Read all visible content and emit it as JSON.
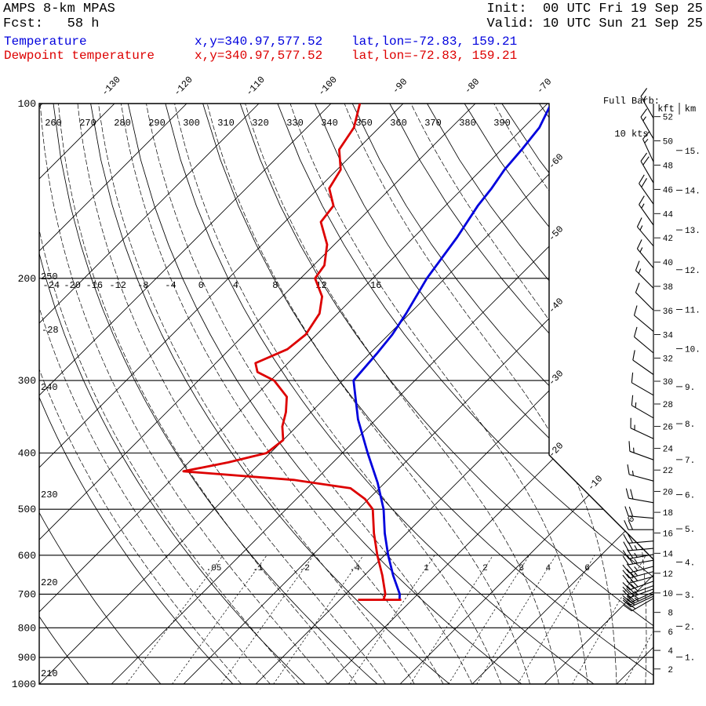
{
  "header": {
    "model": "AMPS 8-km MPAS",
    "fcst": "Fcst:   58 h",
    "init": "Init:  00 UTC Fri 19 Sep 25",
    "valid": "Valid: 10 UTC Sun 21 Sep 25"
  },
  "legend": {
    "temp_label": "Temperature",
    "temp_xy": "x,y=340.97,577.52",
    "temp_latlon": "lat,lon=-72.83, 159.21",
    "dewp_label": "Dewpoint temperature",
    "dewp_xy": "x,y=340.97,577.52",
    "dewp_latlon": "lat,lon=-72.83, 159.21",
    "temp_color": "#0000dd",
    "dewp_color": "#dd0000"
  },
  "barb_legend": {
    "line1": "Full Barb:",
    "line2": "10 kts"
  },
  "axis": {
    "pressure_labels": [
      "100",
      "200",
      "300",
      "400",
      "500",
      "600",
      "700",
      "800",
      "900",
      "1000"
    ],
    "pressure_values": [
      100,
      200,
      300,
      400,
      500,
      600,
      700,
      800,
      900,
      1000
    ],
    "isotherm_top_labels": [
      "-130",
      "-120",
      "-110",
      "-100",
      "-90",
      "-80",
      "-70"
    ],
    "isotherm_top_values": [
      -130,
      -120,
      -110,
      -100,
      -90,
      -80,
      -70
    ],
    "isotherm_right_labels": [
      "-60",
      "-50",
      "-40",
      "-30",
      "-20",
      "-10",
      "0"
    ],
    "isotherm_right_values": [
      -60,
      -50,
      -40,
      -30,
      -20,
      -10,
      0
    ],
    "theta_top_labels": [
      "260",
      "270",
      "280",
      "290",
      "300",
      "310",
      "320",
      "330",
      "340",
      "350",
      "360",
      "370",
      "380",
      "390"
    ],
    "theta_left_labels": [
      "250",
      "240",
      "230",
      "220",
      "210"
    ],
    "moist_labels": [
      "-28",
      "-24",
      "-20",
      "-16",
      "-12",
      "-8",
      "-4",
      "0",
      "4",
      "8",
      "12",
      "16"
    ],
    "moist_values": [
      -28,
      -24,
      -20,
      -16,
      -12,
      -8,
      -4,
      0,
      4,
      8,
      12,
      16
    ],
    "mixing_labels": [
      ".05",
      ".1",
      ".2",
      ".4",
      "1",
      "2",
      "3",
      "4",
      "6"
    ],
    "mixing_values": [
      0.05,
      0.1,
      0.2,
      0.4,
      1,
      2,
      3,
      4,
      6
    ],
    "mixing_unlabeled": [
      10,
      16
    ],
    "kft_header": "kft",
    "km_header": "km",
    "kft_values": [
      2,
      4,
      6,
      8,
      10,
      12,
      14,
      16,
      18,
      20,
      22,
      24,
      26,
      28,
      30,
      32,
      34,
      36,
      38,
      40,
      42,
      44,
      46,
      48,
      50,
      52
    ],
    "kft_labels": [
      "2",
      "4",
      "6",
      "8",
      "10",
      "12",
      "14",
      "16",
      "18",
      "20",
      "22",
      "24",
      "26",
      "28",
      "30",
      "32",
      "34",
      "36",
      "38",
      "40",
      "42",
      "44",
      "46",
      "48",
      "50",
      "52"
    ],
    "km_values": [
      1,
      2,
      3,
      4,
      5,
      6,
      7,
      8,
      9,
      10,
      11,
      12,
      13,
      14,
      15
    ],
    "km_labels": [
      "1.",
      "2.",
      "3.",
      "4.",
      "5.",
      "6.",
      "7.",
      "8.",
      "9.",
      "10.",
      "11.",
      "12.",
      "13.",
      "14.",
      "15."
    ]
  },
  "chart_data": {
    "type": "skewt",
    "pressure_unit": "hPa",
    "temperature_unit": "C",
    "temperature_profile": {
      "label": "Temperature",
      "color": "#0000dd",
      "points": [
        [
          715,
          -21.8
        ],
        [
          700,
          -22.5
        ],
        [
          650,
          -26.0
        ],
        [
          600,
          -29.5
        ],
        [
          550,
          -33.0
        ],
        [
          500,
          -36.5
        ],
        [
          450,
          -41.0
        ],
        [
          400,
          -46.5
        ],
        [
          350,
          -52.5
        ],
        [
          300,
          -58.5
        ],
        [
          270,
          -59.0
        ],
        [
          250,
          -59.5
        ],
        [
          230,
          -60.5
        ],
        [
          200,
          -62.5
        ],
        [
          170,
          -64.0
        ],
        [
          150,
          -65.5
        ],
        [
          140,
          -66.0
        ],
        [
          130,
          -66.8
        ],
        [
          120,
          -67.2
        ],
        [
          110,
          -67.8
        ],
        [
          100,
          -69.5
        ]
      ]
    },
    "dewpoint_profile": {
      "label": "Dewpoint temperature",
      "color": "#dd0000",
      "points": [
        [
          715,
          -24.0
        ],
        [
          700,
          -24.5
        ],
        [
          650,
          -27.5
        ],
        [
          600,
          -31.0
        ],
        [
          550,
          -34.5
        ],
        [
          500,
          -38.0
        ],
        [
          480,
          -40.5
        ],
        [
          460,
          -44.0
        ],
        [
          445,
          -53.0
        ],
        [
          430,
          -69.5
        ],
        [
          415,
          -64.5
        ],
        [
          400,
          -60.5
        ],
        [
          380,
          -60.0
        ],
        [
          360,
          -62.0
        ],
        [
          340,
          -63.5
        ],
        [
          320,
          -65.5
        ],
        [
          300,
          -69.5
        ],
        [
          290,
          -73.0
        ],
        [
          280,
          -74.5
        ],
        [
          265,
          -72.0
        ],
        [
          250,
          -71.5
        ],
        [
          230,
          -72.5
        ],
        [
          215,
          -74.5
        ],
        [
          200,
          -78.0
        ],
        [
          190,
          -78.5
        ],
        [
          175,
          -81.0
        ],
        [
          160,
          -85.0
        ],
        [
          150,
          -85.5
        ],
        [
          140,
          -88.5
        ],
        [
          130,
          -89.5
        ],
        [
          120,
          -92.5
        ],
        [
          110,
          -93.5
        ],
        [
          100,
          -96.0
        ]
      ]
    },
    "surface_bar": {
      "pressure": 716,
      "t_from": -27.5,
      "t_to": -21.5
    },
    "wind_barbs": {
      "full_barb_kts": 10,
      "levels": [
        [
          106,
          15,
          330
        ],
        [
          115,
          15,
          330
        ],
        [
          126,
          15,
          335
        ],
        [
          137,
          20,
          330
        ],
        [
          149,
          20,
          325
        ],
        [
          162,
          15,
          325
        ],
        [
          176,
          15,
          320
        ],
        [
          192,
          15,
          320
        ],
        [
          208,
          15,
          315
        ],
        [
          227,
          10,
          315
        ],
        [
          247,
          10,
          310
        ],
        [
          269,
          10,
          310
        ],
        [
          293,
          10,
          305
        ],
        [
          318,
          10,
          300
        ],
        [
          348,
          15,
          300
        ],
        [
          378,
          15,
          295
        ],
        [
          411,
          15,
          290
        ],
        [
          447,
          15,
          285
        ],
        [
          487,
          20,
          280
        ],
        [
          518,
          20,
          275
        ],
        [
          542,
          20,
          270
        ],
        [
          567,
          20,
          265
        ],
        [
          584,
          25,
          265
        ],
        [
          598,
          25,
          260
        ],
        [
          612,
          25,
          260
        ],
        [
          627,
          25,
          255
        ],
        [
          640,
          25,
          255
        ],
        [
          653,
          30,
          255
        ],
        [
          665,
          30,
          250
        ],
        [
          677,
          30,
          250
        ],
        [
          686,
          25,
          250
        ],
        [
          694,
          25,
          245
        ],
        [
          700,
          25,
          245
        ],
        [
          706,
          20,
          245
        ],
        [
          712,
          20,
          240
        ]
      ]
    }
  }
}
